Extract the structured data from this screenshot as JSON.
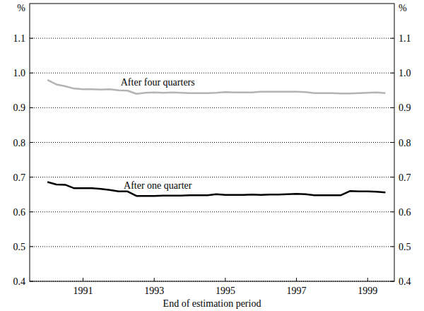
{
  "chart_data": {
    "type": "line",
    "xlabel": "End of estimation period",
    "ylabel": "%",
    "x": [
      1990.0,
      1990.25,
      1990.5,
      1990.75,
      1991.0,
      1991.25,
      1991.5,
      1991.75,
      1992.0,
      1992.25,
      1992.5,
      1992.75,
      1993.0,
      1993.25,
      1993.5,
      1993.75,
      1994.0,
      1994.25,
      1994.5,
      1994.75,
      1995.0,
      1995.25,
      1995.5,
      1995.75,
      1996.0,
      1996.25,
      1996.5,
      1996.75,
      1997.0,
      1997.25,
      1997.5,
      1997.75,
      1998.0,
      1998.25,
      1998.5,
      1998.75,
      1999.0,
      1999.25,
      1999.5
    ],
    "series": [
      {
        "name": "After four quarters",
        "color": "#b4b4b4",
        "values": [
          0.98,
          0.967,
          0.962,
          0.955,
          0.953,
          0.953,
          0.952,
          0.953,
          0.95,
          0.949,
          0.94,
          0.943,
          0.944,
          0.943,
          0.944,
          0.943,
          0.942,
          0.942,
          0.942,
          0.943,
          0.945,
          0.944,
          0.944,
          0.944,
          0.946,
          0.946,
          0.946,
          0.946,
          0.946,
          0.945,
          0.942,
          0.942,
          0.942,
          0.941,
          0.941,
          0.942,
          0.943,
          0.944,
          0.942
        ]
      },
      {
        "name": "After one quarter",
        "color": "#000000",
        "values": [
          0.686,
          0.679,
          0.678,
          0.668,
          0.668,
          0.668,
          0.666,
          0.663,
          0.659,
          0.659,
          0.646,
          0.646,
          0.646,
          0.647,
          0.647,
          0.647,
          0.648,
          0.648,
          0.648,
          0.651,
          0.649,
          0.649,
          0.649,
          0.65,
          0.649,
          0.65,
          0.65,
          0.651,
          0.652,
          0.651,
          0.648,
          0.648,
          0.648,
          0.648,
          0.66,
          0.659,
          0.659,
          0.658,
          0.656
        ]
      }
    ],
    "xlim": [
      1989.5,
      1999.75
    ],
    "xticks": [
      1991,
      1993,
      1995,
      1997,
      1999
    ],
    "ylim": [
      0.4,
      1.2
    ],
    "yticks": [
      0.4,
      0.5,
      0.6,
      0.7,
      0.8,
      0.9,
      {
        "value": 1.0,
        "label": "1.0"
      },
      1.1
    ],
    "grid": true
  }
}
